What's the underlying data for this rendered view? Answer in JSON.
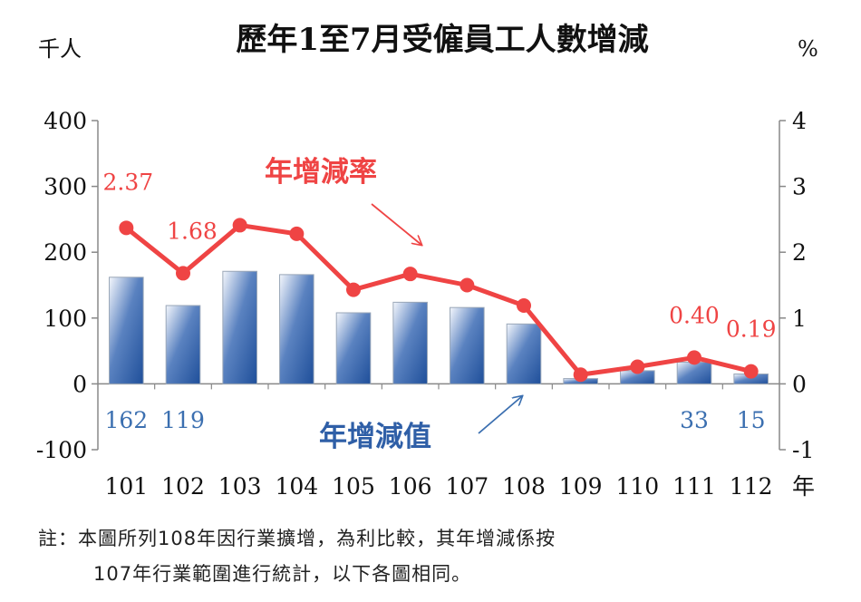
{
  "chart_data": {
    "type": "bar",
    "title": "歷年1至7月受僱員工人數增減",
    "left_unit": "千人",
    "right_unit": "%",
    "x_unit": "年",
    "categories": [
      "101",
      "102",
      "103",
      "104",
      "105",
      "106",
      "107",
      "108",
      "109",
      "110",
      "111",
      "112"
    ],
    "series": [
      {
        "name": "年增減值",
        "type": "bar",
        "axis": "left",
        "values": [
          162,
          119,
          171,
          166,
          108,
          124,
          116,
          91,
          8,
          20,
          33,
          15
        ],
        "labels": [
          "162",
          "119",
          "",
          "",
          "",
          "",
          "",
          "",
          "",
          "",
          "33",
          "15"
        ]
      },
      {
        "name": "年增減率",
        "type": "line",
        "axis": "right",
        "values": [
          2.37,
          1.68,
          2.41,
          2.28,
          1.43,
          1.67,
          1.5,
          1.19,
          0.14,
          0.26,
          0.4,
          0.19
        ],
        "labels": [
          "2.37",
          "1.68",
          "",
          "",
          "",
          "",
          "",
          "",
          "",
          "",
          "0.40",
          "0.19"
        ]
      }
    ],
    "left_axis": {
      "min": -100,
      "max": 400,
      "ticks": [
        "-100",
        "0",
        "100",
        "200",
        "300",
        "400"
      ]
    },
    "right_axis": {
      "min": -1,
      "max": 4,
      "ticks": [
        "-1",
        "0",
        "1",
        "2",
        "3",
        "4"
      ]
    },
    "grid": false,
    "colors": {
      "bar": "#2f5fa7",
      "line": "#ef4444",
      "bar_label": "#3b6fb0"
    }
  },
  "notes": {
    "line1": "註：本圖所列108年因行業擴增，為利比較，其年增減係按",
    "line2": "107年行業範圍進行統計，以下各圖相同。"
  }
}
